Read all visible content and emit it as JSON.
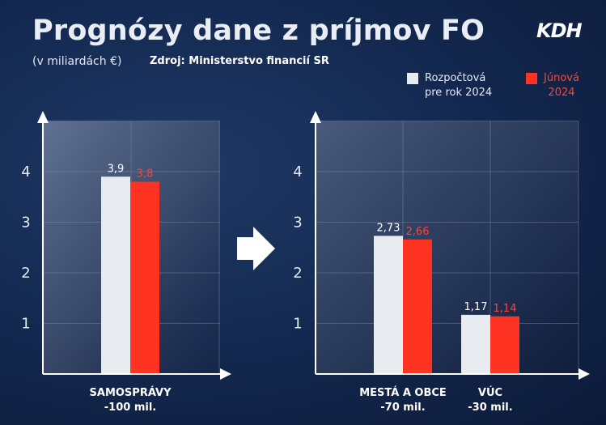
{
  "header": {
    "title": "Prognózy dane z príjmov FO",
    "unit": "(v miliardách €)",
    "source": "Zdroj: Ministerstvo financií SR",
    "logo": "KDH"
  },
  "legend": {
    "items": [
      {
        "line1": "Rozpočtová",
        "line2": "pre rok 2024",
        "color": "#e8ecf0",
        "text_color": "#e4e8f0"
      },
      {
        "line1": "Júnová",
        "line2": "2024",
        "color": "#ff3322",
        "text_color": "#ff4433"
      }
    ]
  },
  "colors": {
    "series_rozpoctova": "#e8ecf0",
    "series_junova": "#ff3322",
    "label_rozpoctova": "#ffffff",
    "label_junova": "#ff4433",
    "axis": "#ffffff",
    "arrow": "#ffffff"
  },
  "chart_data": [
    {
      "type": "bar",
      "categories": [
        "SAMOSPRÁVY"
      ],
      "category_notes": [
        "-100 mil."
      ],
      "series": [
        {
          "name": "Rozpočtová pre rok 2024",
          "values": [
            3.9
          ],
          "labels": [
            "3,9"
          ]
        },
        {
          "name": "Júnová 2024",
          "values": [
            3.8
          ],
          "labels": [
            "3,8"
          ]
        }
      ],
      "yticks": [
        1,
        2,
        3,
        4
      ],
      "ylim": [
        0,
        5
      ],
      "grid": true
    },
    {
      "type": "bar",
      "categories": [
        "MESTÁ A OBCE",
        "VÚC"
      ],
      "category_notes": [
        "-70 mil.",
        "-30 mil."
      ],
      "series": [
        {
          "name": "Rozpočtová pre rok 2024",
          "values": [
            2.73,
            1.17
          ],
          "labels": [
            "2,73",
            "1,17"
          ]
        },
        {
          "name": "Júnová 2024",
          "values": [
            2.66,
            1.14
          ],
          "labels": [
            "2,66",
            "1,14"
          ]
        }
      ],
      "yticks": [
        1,
        2,
        3,
        4
      ],
      "ylim": [
        0,
        5
      ],
      "grid": true
    }
  ]
}
